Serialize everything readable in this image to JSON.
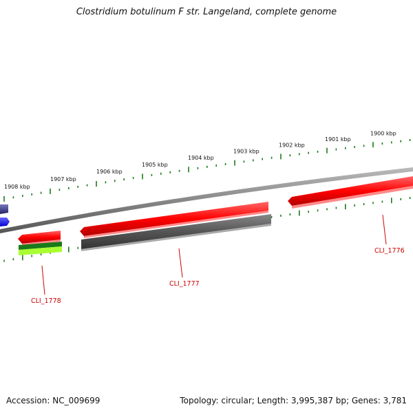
{
  "title": "Clostridium botulinum F str. Langeland, complete genome",
  "scale_labels": [
    "1900 kbp",
    "1901 kbp",
    "1902 kbp",
    "1903 kbp",
    "1904 kbp",
    "1905 kbp",
    "1906 kbp",
    "1907 kbp",
    "1908 kbp"
  ],
  "genes": [
    {
      "id": "CLI_1776",
      "label": "CLI_1776",
      "strand": "forward",
      "color": "#ff0000"
    },
    {
      "id": "CLI_1777",
      "label": "CLI_1777",
      "strand": "forward+reverse",
      "color": "#ff0000"
    },
    {
      "id": "CLI_1778",
      "label": "CLI_1778",
      "strand": "forward",
      "color": "#ff0000"
    }
  ],
  "colors": {
    "forward_gene": "#ff0000",
    "reverse_gene": "#555555",
    "backbone": "#888888",
    "ticks": "#1a7a1a",
    "gene_label": "#cc0000",
    "rna_green_dark": "#1a7a1a",
    "rna_green_light": "#aaff33",
    "partial_blue": "#0000ff",
    "partial_navy": "#333388"
  },
  "footer": {
    "accession": "Accession: NC_009699",
    "topology": "Topology: circular; Length: 3,995,387 bp; Genes: 3,781"
  }
}
